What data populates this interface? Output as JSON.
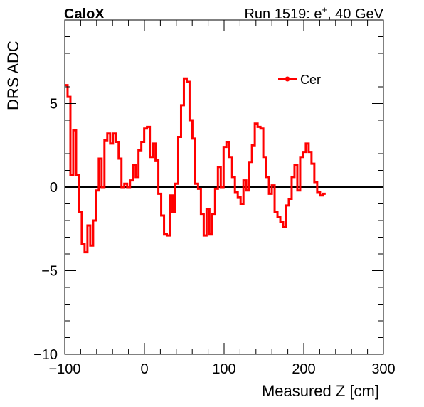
{
  "header": {
    "experiment": "CaloX",
    "run_prefix": "Run 1519: e",
    "run_sup": "+",
    "run_suffix": ", 40 GeV"
  },
  "chart_data": {
    "type": "line",
    "style": "step histogram",
    "xlabel": "Measured Z [cm]",
    "ylabel": "DRS ADC",
    "xlim": [
      -100,
      300
    ],
    "ylim": [
      -10,
      10
    ],
    "x_ticks": [
      "−100",
      "0",
      "100",
      "200",
      "300"
    ],
    "y_ticks": [
      "−10",
      "−5",
      "0",
      "5"
    ],
    "legend": {
      "position": "top-right",
      "entries": [
        "Cer"
      ]
    },
    "line_color": "#ff0000",
    "zero_line": true,
    "series": [
      {
        "name": "Cer",
        "color": "#ff0000",
        "bin_width": 3.56,
        "x_start": -100,
        "values": [
          6.1,
          5.4,
          0.7,
          3.4,
          0.7,
          -1.5,
          -3.4,
          -3.9,
          -2.3,
          -3.5,
          -2.0,
          -0.2,
          1.7,
          0.0,
          2.8,
          3.2,
          2.6,
          3.2,
          2.7,
          1.7,
          0.0,
          0.2,
          0.0,
          0.4,
          1.3,
          0.6,
          2.2,
          2.7,
          3.5,
          3.6,
          1.8,
          2.6,
          1.6,
          -0.4,
          -1.7,
          -2.8,
          -2.9,
          -0.5,
          -1.5,
          0.2,
          3.0,
          4.9,
          6.5,
          6.3,
          4.0,
          2.9,
          0.2,
          -0.1,
          -1.6,
          -2.9,
          -1.3,
          -2.8,
          -1.6,
          -0.1,
          1.2,
          0.0,
          2.4,
          2.7,
          1.8,
          0.6,
          -0.3,
          -0.6,
          -1.0,
          0.4,
          -0.2,
          1.5,
          2.5,
          3.8,
          3.6,
          3.5,
          1.8,
          0.6,
          -0.4,
          0.1,
          -1.5,
          -1.8,
          -2.1,
          -2.4,
          -1.1,
          -0.7,
          0.6,
          1.3,
          -0.2,
          1.8,
          2.1,
          2.6,
          2.1,
          1.4,
          0.3,
          -0.3,
          -0.5,
          -0.4
        ]
      }
    ]
  }
}
